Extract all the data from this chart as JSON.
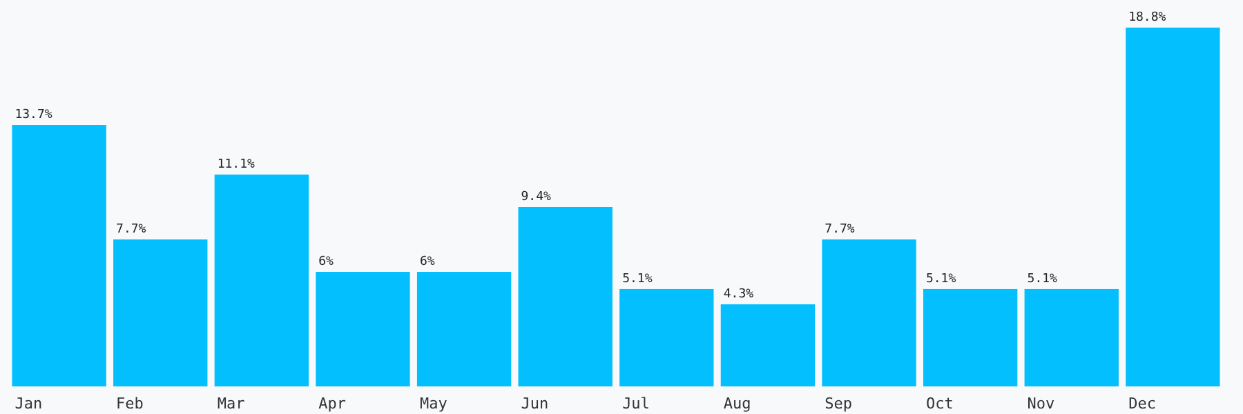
{
  "chart_data": {
    "type": "bar",
    "categories": [
      "Jan",
      "Feb",
      "Mar",
      "Apr",
      "May",
      "Jun",
      "Jul",
      "Aug",
      "Sep",
      "Oct",
      "Nov",
      "Dec"
    ],
    "values": [
      13.7,
      7.7,
      11.1,
      6,
      6,
      9.4,
      5.1,
      4.3,
      7.7,
      5.1,
      5.1,
      18.8
    ],
    "value_labels": [
      "13.7%",
      "7.7%",
      "11.1%",
      "6%",
      "6%",
      "9.4%",
      "5.1%",
      "4.3%",
      "7.7%",
      "5.1%",
      "5.1%",
      "18.8%"
    ],
    "color": "#03bffe"
  }
}
